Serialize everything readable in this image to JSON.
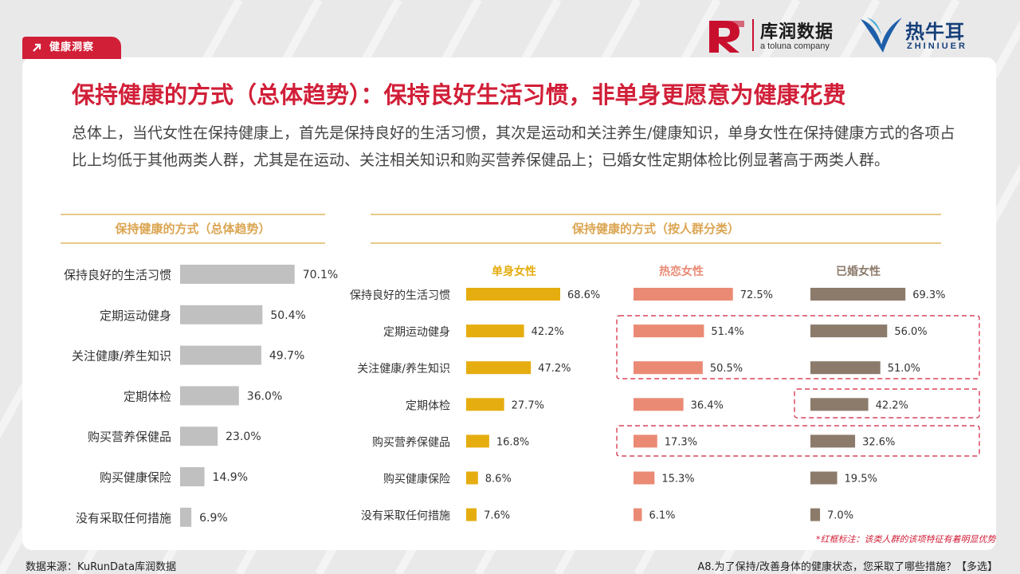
{
  "header": {
    "badge_label": "健康洞察",
    "logo1_text": "库润数据",
    "logo1_sub": "a toluna company",
    "logo2_text": "热牛耳",
    "logo2_sub": "ZHINIUER"
  },
  "title": "保持健康的方式（总体趋势）：保持良好生活习惯，非单身更愿意为健康花费",
  "description": "总体上，当代女性在保持健康上，首先是保持良好的生活习惯，其次是运动和关注养生/健康知识，单身女性在保持健康方式的各项占比上均低于其他两类人群，尤其是在运动、关注相关知识和购买营养保健品上；已婚女性定期体检比例显著高于两类人群。",
  "colors": {
    "accent": "#d11f38",
    "gold": "#dba552",
    "overall_bar": "#c0c0c0",
    "single": "#e6ad10",
    "dating": "#ea8a75",
    "married": "#8c7b6b"
  },
  "chart_data": [
    {
      "type": "bar",
      "orientation": "horizontal",
      "title": "保持健康的方式（总体趋势）",
      "categories": [
        "保持良好的生活习惯",
        "定期运动健身",
        "关注健康/养生知识",
        "定期体检",
        "购买营养保健品",
        "购买健康保险",
        "没有采取任何措施"
      ],
      "values": [
        70.1,
        50.4,
        49.7,
        36.0,
        23.0,
        14.9,
        6.9
      ],
      "labels": [
        "70.1%",
        "50.4%",
        "49.7%",
        "36.0%",
        "23.0%",
        "14.9%",
        "6.9%"
      ]
    },
    {
      "type": "bar",
      "orientation": "horizontal",
      "title": "保持健康的方式（按人群分类）",
      "categories": [
        "保持良好的生活习惯",
        "定期运动健身",
        "关注健康/养生知识",
        "定期体检",
        "购买营养保健品",
        "购买健康保险",
        "没有采取任何措施"
      ],
      "series": [
        {
          "name": "单身女性",
          "values": [
            68.6,
            42.2,
            47.2,
            27.7,
            16.8,
            8.6,
            7.6
          ],
          "labels": [
            "68.6%",
            "42.2%",
            "47.2%",
            "27.7%",
            "16.8%",
            "8.6%",
            "7.6%"
          ]
        },
        {
          "name": "热恋女性",
          "values": [
            72.5,
            51.4,
            50.5,
            36.4,
            17.3,
            15.3,
            6.1
          ],
          "labels": [
            "72.5%",
            "51.4%",
            "50.5%",
            "36.4%",
            "17.3%",
            "15.3%",
            "6.1%"
          ]
        },
        {
          "name": "已婚女性",
          "values": [
            69.3,
            56.0,
            51.0,
            42.2,
            32.6,
            19.5,
            7.0
          ],
          "labels": [
            "69.3%",
            "56.0%",
            "51.0%",
            "42.2%",
            "32.6%",
            "19.5%",
            "7.0%"
          ]
        }
      ]
    }
  ],
  "footnote": "*红框标注：该类人群的该项特征有着明显优势",
  "source": "数据来源：KuRunData库润数据",
  "question": "A8.为了保持/改善身体的健康状态，您采取了哪些措施？【多选】"
}
